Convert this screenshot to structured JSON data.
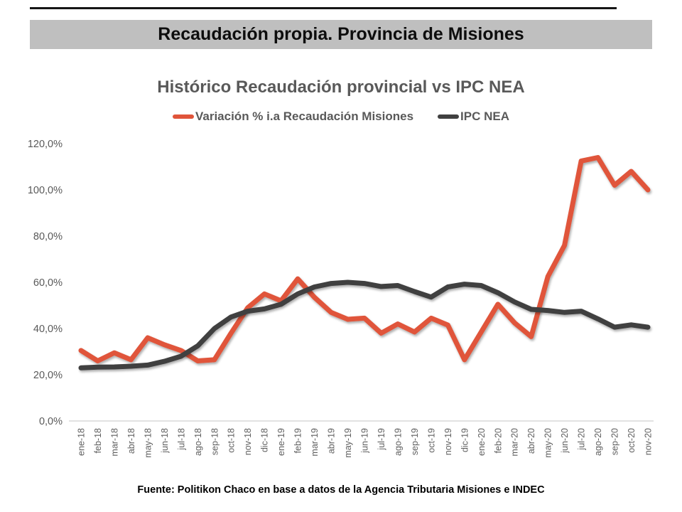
{
  "header": {
    "title": "Recaudación propia. Provincia de Misiones",
    "banner_bg": "#BFBFBF"
  },
  "chart": {
    "title": "Histórico Recaudación provincial vs IPC NEA",
    "legend": [
      {
        "label": "Variación % i.a Recaudación Misiones",
        "color": "#E0543A"
      },
      {
        "label": "IPC NEA",
        "color": "#404040"
      }
    ]
  },
  "chart_data": {
    "type": "line",
    "title": "Histórico Recaudación provincial vs IPC NEA",
    "categories": [
      "ene-18",
      "feb-18",
      "mar-18",
      "abr-18",
      "may-18",
      "jun-18",
      "jul-18",
      "ago-18",
      "sep-18",
      "oct-18",
      "nov-18",
      "dic-18",
      "ene-19",
      "feb-19",
      "mar-19",
      "abr-19",
      "may-19",
      "jun-19",
      "jul-19",
      "ago-19",
      "sep-19",
      "oct-19",
      "nov-19",
      "dic-19",
      "ene-20",
      "feb-20",
      "mar-20",
      "abr-20",
      "may-20",
      "jun-20",
      "jul-20",
      "ago-20",
      "sep-20",
      "oct-20",
      "nov-20"
    ],
    "series": [
      {
        "name": "Variación % i.a Recaudación Misiones",
        "color": "#E0543A",
        "values": [
          30.5,
          26.0,
          29.5,
          26.5,
          36.0,
          33.0,
          30.5,
          26.0,
          26.5,
          38.0,
          49.0,
          55.0,
          52.0,
          61.5,
          53.5,
          47.0,
          44.0,
          44.5,
          38.0,
          42.0,
          38.5,
          44.5,
          41.5,
          26.5,
          38.5,
          50.5,
          42.5,
          36.5,
          62.5,
          76.0,
          112.5,
          114.0,
          102.0,
          108.0,
          100.0
        ]
      },
      {
        "name": "IPC NEA",
        "color": "#404040",
        "values": [
          23.0,
          23.3,
          23.4,
          23.7,
          24.2,
          25.8,
          28.0,
          32.5,
          40.0,
          45.0,
          47.5,
          48.5,
          50.5,
          55.0,
          58.0,
          59.5,
          60.0,
          59.5,
          58.2,
          58.6,
          56.0,
          53.6,
          58.0,
          59.2,
          58.6,
          55.5,
          51.5,
          48.3,
          47.8,
          47.0,
          47.5,
          44.2,
          40.6,
          41.6,
          40.6
        ]
      }
    ],
    "ylim": [
      0,
      120
    ],
    "ytick_step": 20,
    "ytick_labels": [
      "0,0%",
      "20,0%",
      "40,0%",
      "60,0%",
      "80,0%",
      "100,0%",
      "120,0%"
    ],
    "grid": false,
    "legend_position": "top"
  },
  "footer": {
    "source": "Fuente: Politikon Chaco en base a datos de la Agencia Tributaria Misiones e INDEC"
  }
}
